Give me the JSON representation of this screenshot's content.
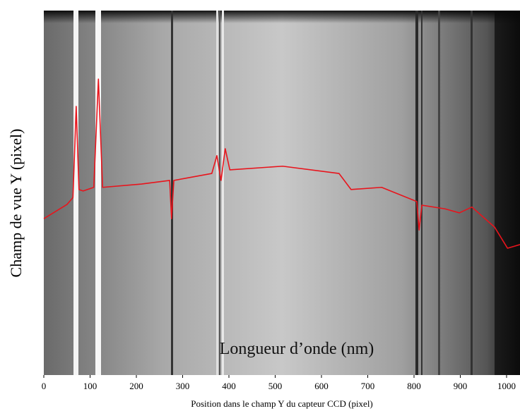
{
  "chart_data": {
    "type": "line",
    "ylabel": "Champ de vue Y (pixel)",
    "xlabel": "Position dans le champ Y du capteur CCD (pixel)",
    "annotation": "Longueur d’onde (nm)",
    "xlim": [
      0,
      1029
    ],
    "xticks": [
      0,
      100,
      200,
      300,
      400,
      500,
      600,
      700,
      800,
      900,
      1000
    ],
    "ylim": [
      0,
      100
    ],
    "series": [
      {
        "color": "#e8141c",
        "x": [
          0,
          50,
          63,
          70,
          76,
          85,
          108,
          118,
          127,
          211,
          272,
          276,
          281,
          363,
          374,
          383,
          392,
          402,
          516,
          638,
          664,
          730,
          806,
          811,
          817,
          867,
          898,
          925,
          974,
          1002,
          1029
        ],
        "values": [
          42.9,
          46.8,
          48.7,
          73.7,
          50.9,
          50.5,
          51.5,
          81.2,
          51.5,
          52.4,
          53.4,
          42.9,
          53.4,
          55.3,
          60.2,
          53.4,
          62.1,
          56.3,
          57.3,
          55.3,
          50.9,
          51.5,
          47.6,
          39.8,
          46.6,
          45.6,
          44.5,
          46.1,
          40.6,
          34.8,
          35.8
        ]
      }
    ]
  }
}
